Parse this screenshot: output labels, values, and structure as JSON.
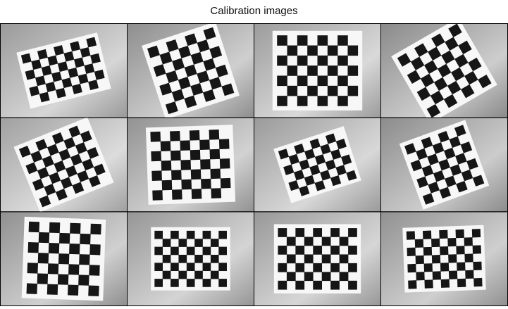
{
  "title": "Calibration images",
  "grid": {
    "rows": 3,
    "cols": 4
  },
  "colors": {
    "background": "#ffffff",
    "border": "#000000",
    "square": "#161616",
    "paper": "#f7f7f7"
  },
  "images": [
    {
      "name": "calibration-image-1",
      "board_cols": 9,
      "board_rows": 6,
      "tilt_deg": -14,
      "scale": 0.88,
      "bg_light": "#d6d6d6",
      "bg_dark": "#9a9a9a"
    },
    {
      "name": "calibration-image-2",
      "board_cols": 7,
      "board_rows": 7,
      "tilt_deg": -18,
      "scale": 0.82,
      "bg_light": "#cfcfcf",
      "bg_dark": "#8e8e8e"
    },
    {
      "name": "calibration-image-3",
      "board_cols": 8,
      "board_rows": 7,
      "tilt_deg": 0,
      "scale": 0.95,
      "bg_light": "#d9d9d9",
      "bg_dark": "#9c9c9c"
    },
    {
      "name": "calibration-image-4",
      "board_cols": 7,
      "board_rows": 7,
      "tilt_deg": -30,
      "scale": 0.82,
      "bg_light": "#cdcdcd",
      "bg_dark": "#8a8a8a"
    },
    {
      "name": "calibration-image-5",
      "board_cols": 8,
      "board_rows": 7,
      "tilt_deg": -22,
      "scale": 0.84,
      "bg_light": "#dcdcdc",
      "bg_dark": "#a0a0a0"
    },
    {
      "name": "calibration-image-6",
      "board_cols": 8,
      "board_rows": 7,
      "tilt_deg": -2,
      "scale": 0.92,
      "bg_light": "#d2d2d2",
      "bg_dark": "#929292"
    },
    {
      "name": "calibration-image-7",
      "board_cols": 8,
      "board_rows": 6,
      "tilt_deg": -18,
      "scale": 0.78,
      "bg_light": "#d8d8d8",
      "bg_dark": "#9a9a9a"
    },
    {
      "name": "calibration-image-8",
      "board_cols": 7,
      "board_rows": 7,
      "tilt_deg": -20,
      "scale": 0.74,
      "bg_light": "#cccccc",
      "bg_dark": "#8c8c8c"
    },
    {
      "name": "calibration-image-9",
      "board_cols": 7,
      "board_rows": 7,
      "tilt_deg": 2,
      "scale": 0.86,
      "bg_light": "#d0d0d0",
      "bg_dark": "#909090"
    },
    {
      "name": "calibration-image-10",
      "board_cols": 9,
      "board_rows": 7,
      "tilt_deg": 0,
      "scale": 0.84,
      "bg_light": "#d4d4d4",
      "bg_dark": "#969696"
    },
    {
      "name": "calibration-image-11",
      "board_cols": 9,
      "board_rows": 7,
      "tilt_deg": 0,
      "scale": 0.92,
      "bg_light": "#d6d6d6",
      "bg_dark": "#989898"
    },
    {
      "name": "calibration-image-12",
      "board_cols": 9,
      "board_rows": 7,
      "tilt_deg": -2,
      "scale": 0.86,
      "bg_light": "#cfcfcf",
      "bg_dark": "#919191"
    }
  ]
}
